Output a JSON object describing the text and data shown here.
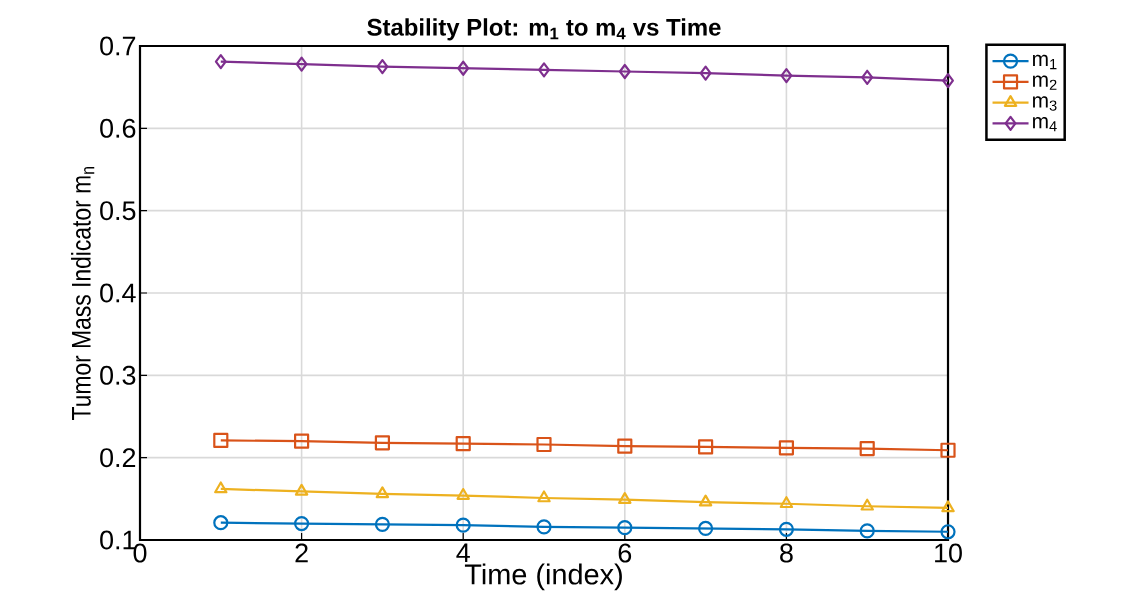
{
  "chart_data": {
    "type": "line",
    "title": "Stability Plot: **m$_{1}$ to m$_{4}$ vs Time**",
    "xlabel": "Time (index)",
    "ylabel": "Tumor Mass Indicator m$_{n}$",
    "x": [
      1,
      2,
      3,
      4,
      5,
      6,
      7,
      8,
      9,
      10
    ],
    "series": [
      {
        "name": "m$_{1}$",
        "color": "#0072bd",
        "marker": "circle",
        "values": [
          0.121,
          0.12,
          0.119,
          0.118,
          0.116,
          0.115,
          0.114,
          0.113,
          0.111,
          0.11
        ]
      },
      {
        "name": "m$_{2}$",
        "color": "#d95319",
        "marker": "square",
        "values": [
          0.221,
          0.22,
          0.218,
          0.217,
          0.216,
          0.214,
          0.213,
          0.212,
          0.211,
          0.209
        ]
      },
      {
        "name": "m$_{3}$",
        "color": "#edb120",
        "marker": "triangle",
        "values": [
          0.162,
          0.159,
          0.156,
          0.154,
          0.151,
          0.149,
          0.146,
          0.144,
          0.141,
          0.139
        ]
      },
      {
        "name": "m$_{4}$",
        "color": "#7e2f8e",
        "marker": "diamond",
        "values": [
          0.681,
          0.678,
          0.675,
          0.673,
          0.671,
          0.669,
          0.667,
          0.664,
          0.662,
          0.658
        ]
      }
    ],
    "xlim": [
      0,
      10
    ],
    "xticks": [
      0,
      2,
      4,
      6,
      8,
      10
    ],
    "ylim": [
      0.1,
      0.7
    ],
    "yticks": [
      0.1,
      0.2,
      0.3,
      0.4,
      0.5,
      0.6,
      0.7
    ],
    "grid": true,
    "legend": "top right",
    "line_style": "solid"
  }
}
